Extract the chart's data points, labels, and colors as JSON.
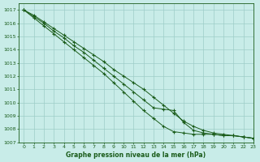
{
  "background_color": "#c8ece8",
  "grid_color": "#9dcdc8",
  "line_color": "#1a5c1a",
  "xlabel": "Graphe pression niveau de la mer (hPa)",
  "ylim": [
    1007,
    1017.5
  ],
  "xlim": [
    -0.5,
    23
  ],
  "yticks": [
    1007,
    1008,
    1009,
    1010,
    1011,
    1012,
    1013,
    1014,
    1015,
    1016,
    1017
  ],
  "xticks": [
    0,
    1,
    2,
    3,
    4,
    5,
    6,
    7,
    8,
    9,
    10,
    11,
    12,
    13,
    14,
    15,
    16,
    17,
    18,
    19,
    20,
    21,
    22,
    23
  ],
  "series": [
    [
      1017.0,
      1016.6,
      1016.1,
      1015.6,
      1015.1,
      1014.6,
      1014.1,
      1013.6,
      1013.1,
      1012.5,
      1012.0,
      1011.5,
      1011.0,
      1010.4,
      1009.8,
      1009.2,
      1008.6,
      1008.2,
      1007.9,
      1007.7,
      1007.6,
      1007.5,
      1007.4,
      1007.3
    ],
    [
      1017.0,
      1016.5,
      1016.0,
      1015.4,
      1014.9,
      1014.3,
      1013.8,
      1013.2,
      1012.6,
      1012.0,
      1011.4,
      1010.8,
      1010.2,
      1009.6,
      1009.5,
      1009.4,
      1008.5,
      1007.9,
      1007.7,
      1007.6,
      1007.5,
      1007.5,
      1007.4,
      1007.3
    ],
    [
      1017.0,
      1016.4,
      1015.8,
      1015.2,
      1014.6,
      1014.0,
      1013.4,
      1012.8,
      1012.2,
      1011.5,
      1010.8,
      1010.1,
      1009.4,
      1008.8,
      1008.2,
      1007.8,
      1007.7,
      1007.6,
      1007.6,
      1007.6,
      1007.5,
      1007.5,
      1007.4,
      1007.3
    ]
  ]
}
